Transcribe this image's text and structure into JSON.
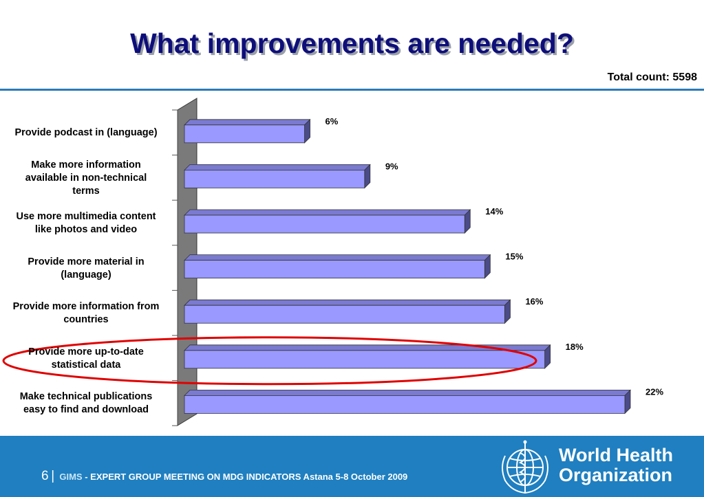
{
  "slide": {
    "title": "What improvements are needed?",
    "total_count": "Total count: 5598"
  },
  "chart_data": {
    "type": "bar",
    "orientation": "horizontal",
    "categories": [
      "Provide podcast in (language)",
      "Make more information available in non-technical terms",
      "Use more multimedia content like photos and video",
      "Provide more material in (language)",
      "Provide more information from countries",
      "Provide more up-to-date statistical data",
      "Make technical publications easy to find and download"
    ],
    "category_lines": [
      [
        "Provide podcast in (language)"
      ],
      [
        "Make more information",
        "available in non-technical",
        "terms"
      ],
      [
        "Use more multimedia content",
        "like photos and video"
      ],
      [
        "Provide more material in",
        "(language)"
      ],
      [
        "Provide more information from",
        "countries"
      ],
      [
        "Provide more up-to-date",
        "statistical data"
      ],
      [
        "Make technical publications",
        "easy to find and download"
      ]
    ],
    "values": [
      6,
      9,
      14,
      15,
      16,
      18,
      22
    ],
    "value_labels": [
      "6%",
      "9%",
      "14%",
      "15%",
      "16%",
      "18%",
      "22%"
    ],
    "xlim": [
      0,
      22
    ],
    "highlighted_category": "Provide more up-to-date statistical data",
    "bar_color": "#9999ff",
    "bar_side_color": "#4b4b88",
    "bar_top_color": "#7a7ad0",
    "highlight_color": "#e00000",
    "wall_color": "#7a7a7a",
    "xlabel": "",
    "ylabel": ""
  },
  "footer": {
    "page_number": "6",
    "separator": "|",
    "program": "GIMS",
    "event": "- EXPERT GROUP MEETING ON MDG INDICATORS Astana 5-8 October 2009",
    "org_line1": "World Health",
    "org_line2": "Organization",
    "background_color": "#1f7fc0"
  }
}
